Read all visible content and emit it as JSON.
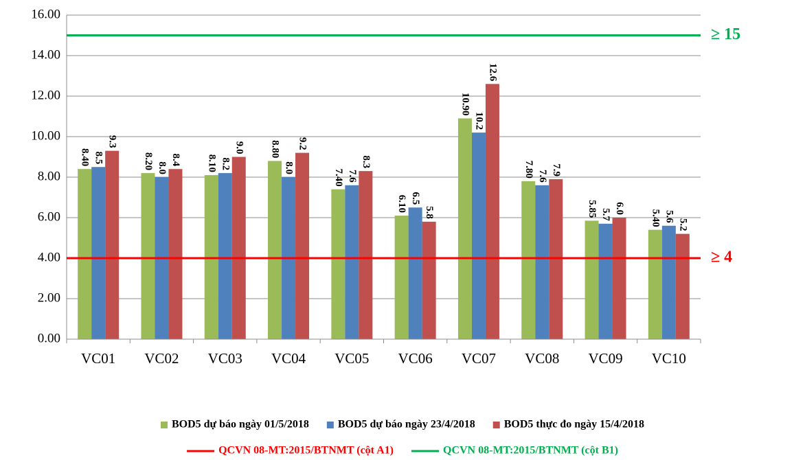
{
  "chart_data": {
    "type": "bar",
    "categories": [
      "VC01",
      "VC02",
      "VC03",
      "VC04",
      "VC05",
      "VC06",
      "VC07",
      "VC08",
      "VC09",
      "VC10"
    ],
    "series": [
      {
        "name": "BOD5 dự báo ngày 01/5/2018",
        "color": "#9bbb59",
        "values": [
          8.4,
          8.2,
          8.1,
          8.8,
          7.4,
          6.1,
          10.9,
          7.8,
          5.85,
          5.4
        ],
        "value_labels": [
          "8.40",
          "8.20",
          "8.10",
          "8.80",
          "7.40",
          "6.10",
          "10.90",
          "7.80",
          "5.85",
          "5.40"
        ]
      },
      {
        "name": "BOD5 dự báo ngày 23/4/2018",
        "color": "#4f81bd",
        "values": [
          8.5,
          8.0,
          8.2,
          8.0,
          7.6,
          6.5,
          10.2,
          7.6,
          5.7,
          5.6
        ],
        "value_labels": [
          "8.5",
          "8.0",
          "8.2",
          "8.0",
          "7.6",
          "6.5",
          "10.2",
          "7.6",
          "5.7",
          "5.6"
        ]
      },
      {
        "name": "BOD5 thực đo ngày 15/4/2018",
        "color": "#c0504d",
        "values": [
          9.3,
          8.4,
          9.0,
          9.2,
          8.3,
          5.8,
          12.6,
          7.9,
          6.0,
          5.2
        ],
        "value_labels": [
          "9.3",
          "8.4",
          "9.0",
          "9.2",
          "8.3",
          "5.8",
          "12.6",
          "7.9",
          "6.0",
          "5.2"
        ]
      }
    ],
    "reference_lines": [
      {
        "name": "QCVN 08-MT:2015/BTNMT (cột A1)",
        "value": 4,
        "label": "≥ 4",
        "color": "#ff0000"
      },
      {
        "name": "QCVN 08-MT:2015/BTNMT (cột B1)",
        "value": 15,
        "label": "≥ 15",
        "color": "#00b050"
      }
    ],
    "ylim": [
      0,
      16
    ],
    "yticks": [
      {
        "value": 0,
        "label": "0.00"
      },
      {
        "value": 2,
        "label": "2.00"
      },
      {
        "value": 4,
        "label": "4.00"
      },
      {
        "value": 6,
        "label": "6.00"
      },
      {
        "value": 8,
        "label": "8.00"
      },
      {
        "value": 10,
        "label": "10.00"
      },
      {
        "value": 12,
        "label": "12.00"
      },
      {
        "value": 14,
        "label": "14.00"
      },
      {
        "value": 16,
        "label": "16.00"
      }
    ],
    "grid": true
  }
}
